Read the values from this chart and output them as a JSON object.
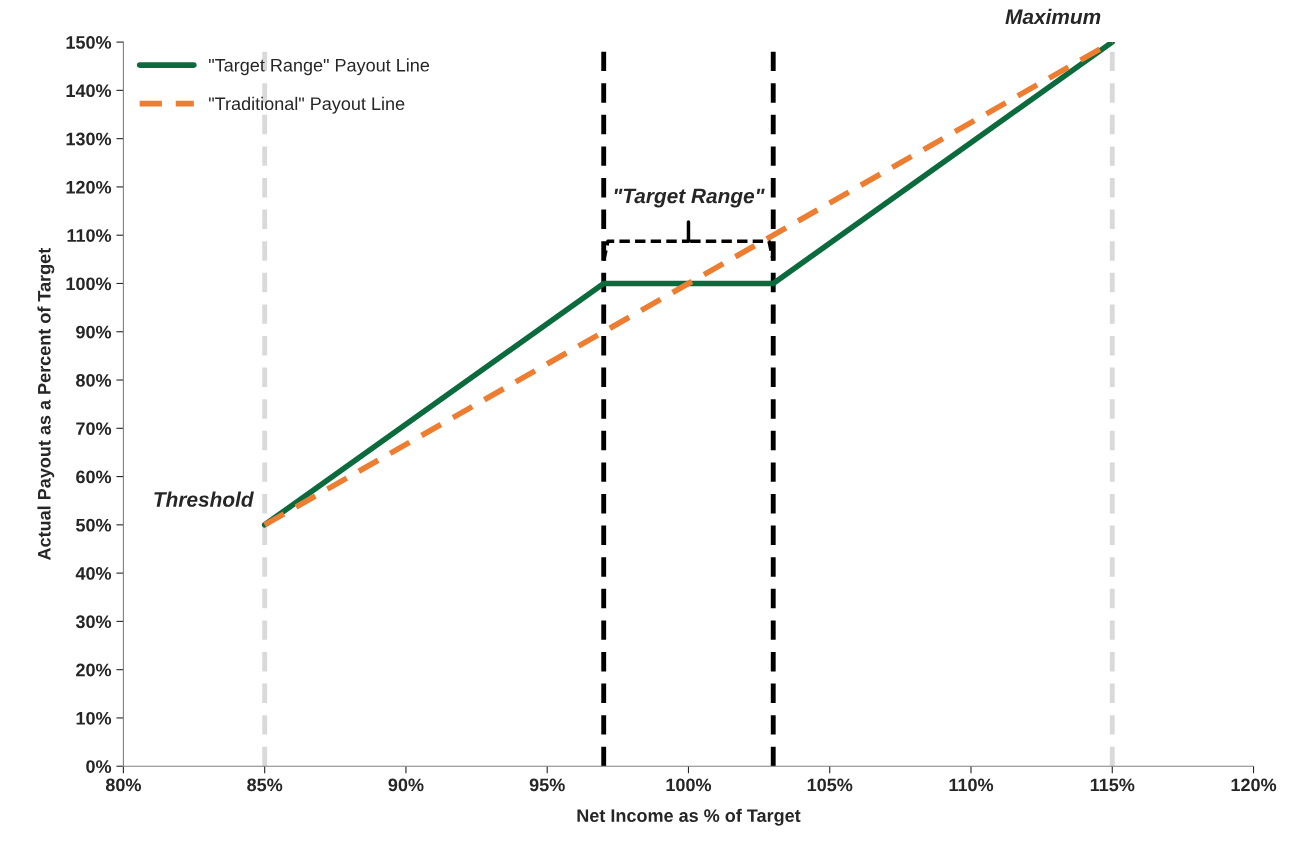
{
  "chart_data": {
    "type": "line",
    "xlabel": "Net Income as % of Target",
    "ylabel": "Actual Payout as a Percent of Target",
    "xlim": [
      80,
      120
    ],
    "xticks": [
      {
        "value": 80,
        "label": "80%"
      },
      {
        "value": 85,
        "label": "85%"
      },
      {
        "value": 90,
        "label": "90%"
      },
      {
        "value": 95,
        "label": "95%"
      },
      {
        "value": 100,
        "label": "100%"
      },
      {
        "value": 105,
        "label": "105%"
      },
      {
        "value": 110,
        "label": "110%"
      },
      {
        "value": 115,
        "label": "115%"
      },
      {
        "value": 120,
        "label": "120%"
      }
    ],
    "ylim": [
      0,
      150
    ],
    "yticks": [
      {
        "value": 0,
        "label": "0%"
      },
      {
        "value": 10,
        "label": "10%"
      },
      {
        "value": 20,
        "label": "20%"
      },
      {
        "value": 30,
        "label": "30%"
      },
      {
        "value": 40,
        "label": "40%"
      },
      {
        "value": 50,
        "label": "50%"
      },
      {
        "value": 60,
        "label": "60%"
      },
      {
        "value": 70,
        "label": "70%"
      },
      {
        "value": 80,
        "label": "80%"
      },
      {
        "value": 90,
        "label": "90%"
      },
      {
        "value": 100,
        "label": "100%"
      },
      {
        "value": 110,
        "label": "110%"
      },
      {
        "value": 120,
        "label": "120%"
      },
      {
        "value": 130,
        "label": "130%"
      },
      {
        "value": 140,
        "label": "140%"
      },
      {
        "value": 150,
        "label": "150%"
      }
    ],
    "grid": false,
    "legend": "top left",
    "series": [
      {
        "name": "\"Target Range\" Payout Line",
        "color": "#0b6b3c",
        "line_style": "solid",
        "x": [
          85,
          97,
          103,
          115
        ],
        "values": [
          50,
          100,
          100,
          150
        ]
      },
      {
        "name": "\"Traditional\" Payout Line",
        "color": "#ed7d31",
        "line_style": "dashed",
        "x": [
          85,
          115
        ],
        "values": [
          50,
          150
        ]
      }
    ],
    "ref_lines": [
      {
        "axis": "x",
        "value": 85,
        "color": "#d9d9d9",
        "line_style": "dashed"
      },
      {
        "axis": "x",
        "value": 115,
        "color": "#d9d9d9",
        "line_style": "dashed"
      },
      {
        "axis": "x",
        "value": 97,
        "color": "#000000",
        "line_style": "dashed"
      },
      {
        "axis": "x",
        "value": 103,
        "color": "#000000",
        "line_style": "dashed"
      }
    ],
    "annotations": [
      {
        "text": "Threshold",
        "x": 85,
        "y": 50
      },
      {
        "text": "Maximum",
        "x": 115,
        "y": 150
      },
      "\"Target Range\""
    ]
  }
}
